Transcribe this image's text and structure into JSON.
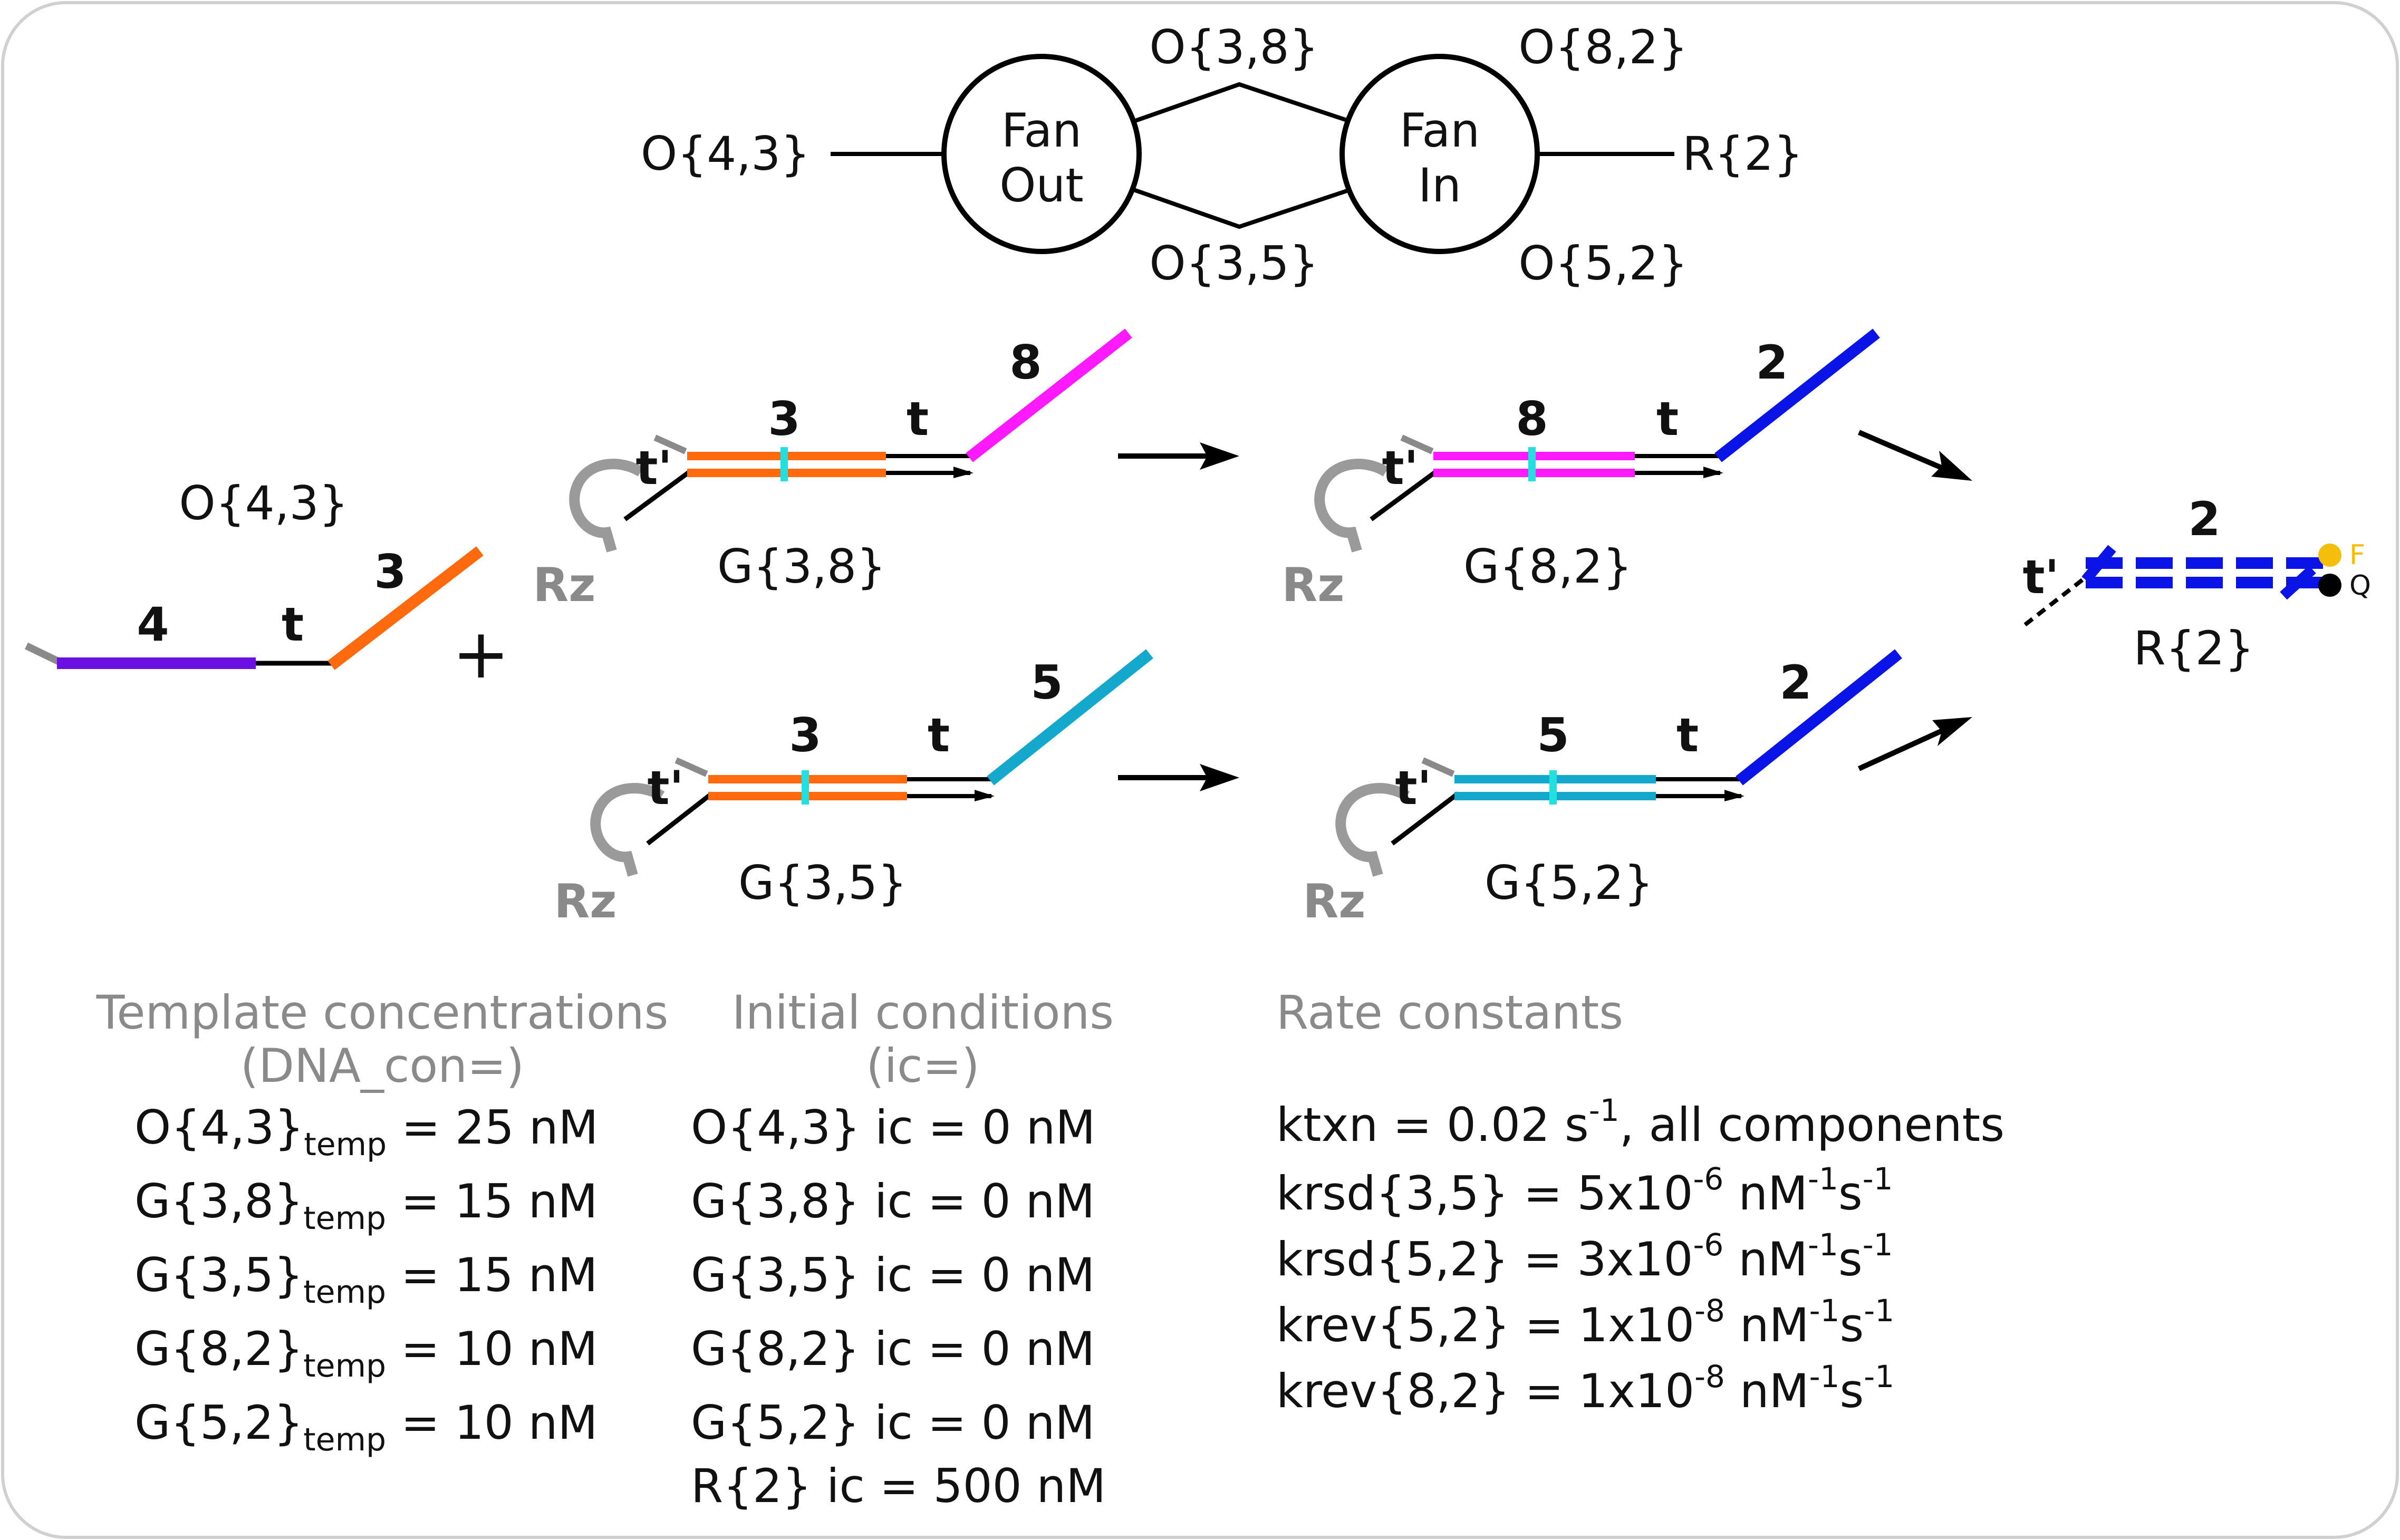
{
  "colors": {
    "orange": "#FF6A0E",
    "magenta": "#FF19FF",
    "blue": "#0A14E6",
    "cyan": "#14A8CC",
    "purple": "#6A10E0",
    "gray": "#8A8A8A",
    "fluor": "#F4BE0A",
    "quencher": "#000000"
  },
  "network": {
    "input": "O{4,3}",
    "node1": [
      "Fan",
      "Out"
    ],
    "node2": [
      "Fan",
      "In"
    ],
    "upper_mid": "O{3,8}",
    "lower_mid": "O{3,5}",
    "upper_out": "O{8,2}",
    "lower_out": "O{5,2}",
    "output": "R{2}"
  },
  "strands": {
    "input_name": "O{4,3}",
    "input_domain_left": "4",
    "input_toehold": "t",
    "input_domain_right": "3",
    "plus": "+",
    "g38": {
      "name": "G{3,8}",
      "domain": "3",
      "toehold": "t",
      "overhang": "8",
      "tprime": "t'",
      "rz": "Rz"
    },
    "g35": {
      "name": "G{3,5}",
      "domain": "3",
      "toehold": "t",
      "overhang": "5",
      "tprime": "t'",
      "rz": "Rz"
    },
    "g82": {
      "name": "G{8,2}",
      "domain": "8",
      "toehold": "t",
      "overhang": "2",
      "tprime": "t'",
      "rz": "Rz"
    },
    "g52": {
      "name": "G{5,2}",
      "domain": "5",
      "toehold": "t",
      "overhang": "2",
      "tprime": "t'",
      "rz": "Rz"
    },
    "reporter": {
      "name": "R{2}",
      "domain": "2",
      "tprime": "t'",
      "fluor": "F",
      "quencher": "Q"
    }
  },
  "template": {
    "header": [
      "Template concentrations",
      "(DNA_con=)"
    ],
    "sub": "temp",
    "rows": [
      {
        "name": "O{4,3}",
        "value": "= 25 nM"
      },
      {
        "name": "G{3,8}",
        "value": "= 15 nM"
      },
      {
        "name": "G{3,5}",
        "value": "= 15 nM"
      },
      {
        "name": "G{8,2}",
        "value": "= 10 nM"
      },
      {
        "name": "G{5,2}",
        "value": "= 10 nM"
      }
    ]
  },
  "initial": {
    "header": [
      "Initial conditions",
      "(ic=)"
    ],
    "rows": [
      "O{4,3} ic = 0 nM",
      "G{3,8} ic = 0 nM",
      "G{3,5} ic = 0 nM",
      "G{8,2} ic = 0 nM",
      "G{5,2} ic = 0 nM",
      "R{2} ic = 500 nM"
    ]
  },
  "rates": {
    "header": "Rate constants",
    "ktxn": {
      "pre": "ktxn = 0.02 s",
      "sup": "-1",
      "post": ", all components"
    },
    "rows": [
      {
        "pre": "krsd{3,5} = 5x10",
        "exp": "-6"
      },
      {
        "pre": "krsd{5,2} = 3x10",
        "exp": "-6"
      },
      {
        "pre": "krev{5,2} = 1x10",
        "exp": "-8"
      },
      {
        "pre": "krev{8,2} = 1x10",
        "exp": "-8"
      }
    ],
    "unit_nm": " nM",
    "unit_nm_exp": "-1",
    "unit_s": "s",
    "unit_s_exp": "-1"
  }
}
